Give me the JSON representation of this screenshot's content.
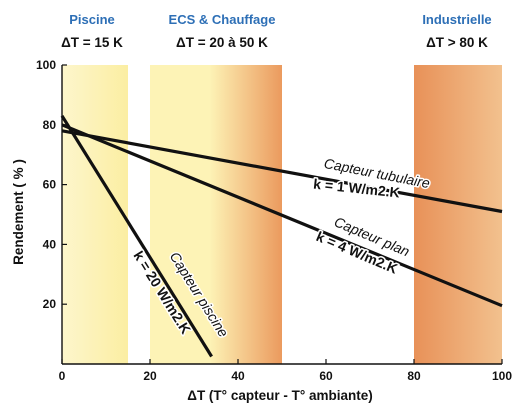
{
  "chart_data": {
    "type": "line",
    "xlabel": "ΔT (T° capteur - T° ambiante)",
    "ylabel": "Rendement ( % )",
    "xlim": [
      0,
      100
    ],
    "ylim": [
      0,
      100
    ],
    "x_ticks": [
      "0",
      "20",
      "40",
      "60",
      "80",
      "100"
    ],
    "y_ticks": [
      "20",
      "40",
      "60",
      "80",
      "100"
    ],
    "grid": false,
    "zones": [
      {
        "name": "Piscine",
        "range_label": "ΔT = 15 K",
        "x_start": 0,
        "x_end": 15,
        "color_light": "#fdf6cc",
        "color_dark": "#fbeea2"
      },
      {
        "name": "ECS & Chauffage",
        "range_label": "ΔT = 20 à 50 K",
        "x_start": 20,
        "x_end": 50,
        "color_light": "#fdf3b6",
        "color_dark": "#eb9a5e"
      },
      {
        "name": "Industrielle",
        "range_label": "ΔT > 80 K",
        "x_start": 80,
        "x_end": 100,
        "color_light": "#e89158",
        "color_dark": "#f2c18e"
      }
    ],
    "series": [
      {
        "name": "Capteur tubulaire",
        "k_label": "k = 1 W/m2.K",
        "x": [
          0,
          100
        ],
        "y": [
          78,
          51
        ]
      },
      {
        "name": "Capteur plan",
        "k_label": "k = 4 W/m2.K",
        "x": [
          0,
          100
        ],
        "y": [
          80,
          19.5
        ]
      },
      {
        "name": "Capteur piscine",
        "k_label": "k = 20 W/m2.K",
        "x": [
          0,
          34
        ],
        "y": [
          83,
          2.5
        ]
      }
    ],
    "title_color": "#2d6fb6",
    "line_color": "#111111"
  }
}
